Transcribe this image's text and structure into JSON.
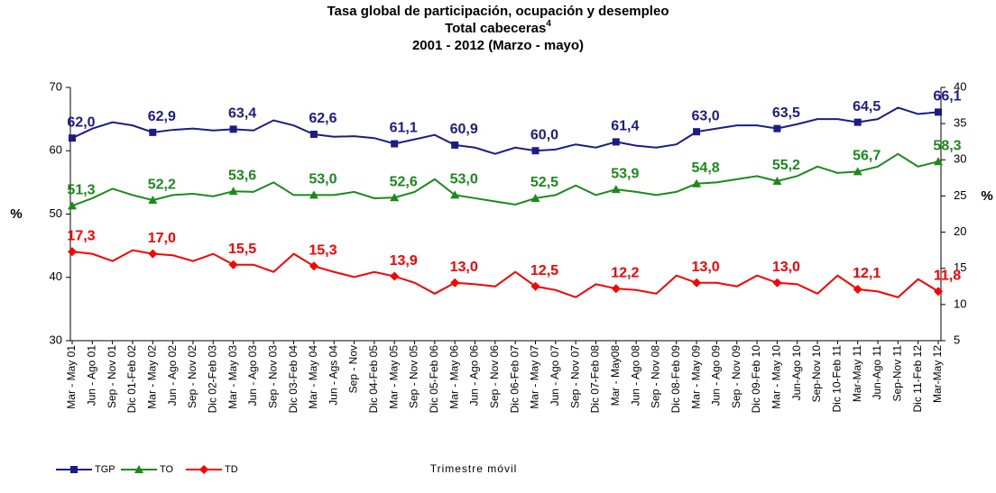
{
  "chart_data": {
    "type": "line",
    "title": [
      "Tasa global de participación, ocupación y desempleo",
      "Total cabeceras",
      "2001 - 2012 (Marzo - mayo)"
    ],
    "title_note": "4",
    "xlabel": "Trimestre móvil",
    "ylabel": "%",
    "y2label": "%",
    "categories": [
      "Mar - May 01",
      "Jun - Ago 01",
      "Sep - Nov 01",
      "Dic 01-Feb 02",
      "Mar - May 02",
      "Jun - Ago 02",
      "Sep - Nov 02",
      "Dic 02-Feb 03",
      "Mar - May 03",
      "Jun - Ago 03",
      "Sep - Nov 03",
      "Dic 03-Feb 04",
      "Mar - May 04",
      "Jun - Ags 04",
      "Sep - Nov",
      "Dic 04-Feb 05",
      "Mar - May 05",
      "Sep - Nov 05",
      "Dic 05-Feb 06",
      "Mar - May 06",
      "Jun - Ago 06",
      "Sep - Nov 06",
      "Dic 06-Feb 07",
      "Mar - May 07",
      "Jun - Ago 07",
      "Sep - Nov 07",
      "Dic 07-Feb 08",
      "Mar - May08",
      "Jun - Ago 08",
      "Sep - Nov 08",
      "Dic 08-Feb 09",
      "Mar - May 09",
      "Jun - Ago 09",
      "Sep - Nov 09",
      "Dic 09-Feb 10",
      "Mar - May 10",
      "Jun-Ago 10",
      "Sep-Nov 10",
      "Dic 10-Feb 11",
      "Mar-May 11",
      "Jun-Ago 11",
      "Sep-Nov 11",
      "Dic 11-Feb 12",
      "Mar-May 12"
    ],
    "series": [
      {
        "name": "TGP",
        "color": "#1c1c86",
        "marker": "square",
        "values": [
          62.0,
          63.5,
          64.5,
          64.0,
          62.9,
          63.3,
          63.5,
          63.2,
          63.4,
          63.2,
          64.8,
          64.0,
          62.6,
          62.2,
          62.3,
          62.0,
          61.1,
          61.8,
          62.5,
          60.9,
          60.5,
          59.5,
          60.5,
          60.0,
          60.2,
          61.0,
          60.5,
          61.4,
          60.8,
          60.5,
          61.0,
          63.0,
          63.5,
          64.0,
          64.0,
          63.5,
          64.2,
          65.0,
          65.0,
          64.5,
          65.0,
          66.8,
          65.8,
          66.1
        ],
        "value_labels": [
          "62,0",
          null,
          null,
          null,
          "62,9",
          null,
          null,
          null,
          "63,4",
          null,
          null,
          null,
          "62,6",
          null,
          null,
          null,
          "61,1",
          null,
          null,
          "60,9",
          null,
          null,
          null,
          "60,0",
          null,
          null,
          null,
          "61,4",
          null,
          null,
          null,
          "63,0",
          null,
          null,
          null,
          "63,5",
          null,
          null,
          null,
          "64,5",
          null,
          null,
          null,
          "66,1"
        ]
      },
      {
        "name": "TO",
        "color": "#1a8a1a",
        "marker": "triangle",
        "values": [
          51.3,
          52.5,
          54.0,
          53.0,
          52.2,
          53.0,
          53.2,
          52.8,
          53.6,
          53.5,
          55.0,
          53.0,
          53.0,
          53.0,
          53.5,
          52.5,
          52.6,
          53.5,
          55.5,
          53.0,
          52.5,
          52.0,
          51.5,
          52.5,
          53.0,
          54.5,
          53.0,
          53.9,
          53.5,
          53.0,
          53.5,
          54.8,
          55.0,
          55.5,
          56.0,
          55.2,
          56.0,
          57.5,
          56.5,
          56.7,
          57.5,
          59.5,
          57.5,
          58.3
        ],
        "value_labels": [
          "51,3",
          null,
          null,
          null,
          "52,2",
          null,
          null,
          null,
          "53,6",
          null,
          null,
          null,
          "53,0",
          null,
          null,
          null,
          "52,6",
          null,
          null,
          "53,0",
          null,
          null,
          null,
          "52,5",
          null,
          null,
          null,
          "53,9",
          null,
          null,
          null,
          "54,8",
          null,
          null,
          null,
          "55,2",
          null,
          null,
          null,
          "56,7",
          null,
          null,
          null,
          "58,3"
        ]
      },
      {
        "name": "TD",
        "color": "#ff0000",
        "marker": "diamond",
        "axis": "y2",
        "values": [
          17.3,
          17.0,
          16.0,
          17.5,
          17.0,
          16.8,
          16.0,
          17.0,
          15.5,
          15.5,
          14.5,
          17.0,
          15.3,
          14.5,
          13.8,
          14.5,
          13.9,
          13.0,
          11.5,
          13.0,
          12.8,
          12.5,
          14.5,
          12.5,
          12.0,
          11.0,
          12.8,
          12.2,
          12.0,
          11.5,
          14.0,
          13.0,
          13.0,
          12.5,
          14.0,
          13.0,
          12.8,
          11.5,
          14.0,
          12.1,
          11.8,
          11.0,
          13.5,
          11.8
        ],
        "value_labels": [
          "17,3",
          null,
          null,
          null,
          "17,0",
          null,
          null,
          null,
          "15,5",
          null,
          null,
          null,
          "15,3",
          null,
          null,
          null,
          "13,9",
          null,
          null,
          "13,0",
          null,
          null,
          null,
          "12,5",
          null,
          null,
          null,
          "12,2",
          null,
          null,
          null,
          "13,0",
          null,
          null,
          null,
          "13,0",
          null,
          null,
          null,
          "12,1",
          null,
          null,
          null,
          "11,8"
        ]
      }
    ],
    "ylim": [
      30,
      70
    ],
    "yticks": [
      30,
      40,
      50,
      60,
      70
    ],
    "y2lim": [
      5,
      40
    ],
    "y2ticks": [
      5,
      10,
      15,
      20,
      25,
      30,
      35,
      40
    ],
    "grid": false,
    "legend": "bottom-left"
  }
}
